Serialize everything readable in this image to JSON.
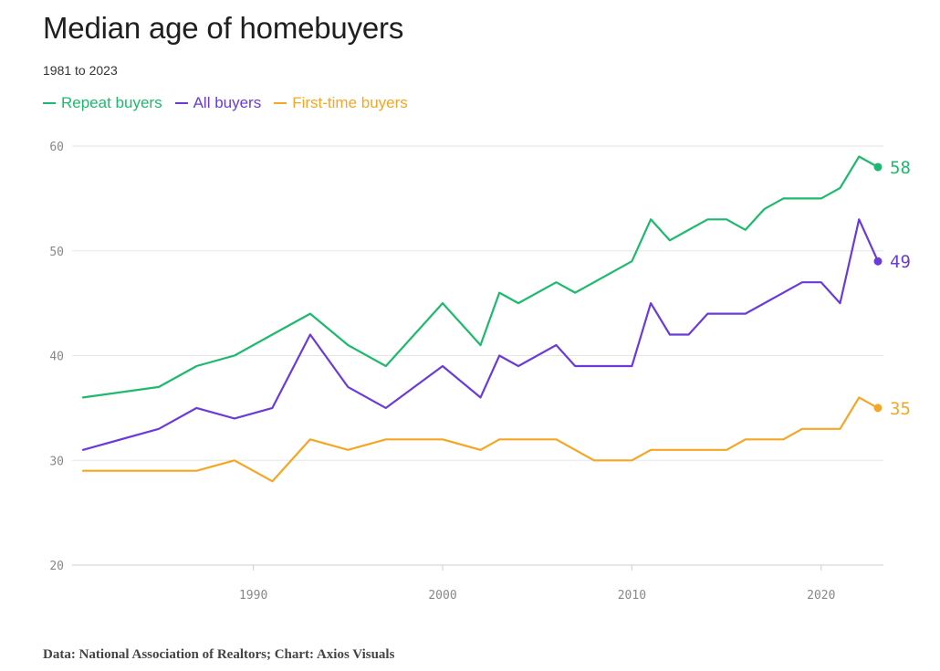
{
  "header": {
    "title": "Median age of homebuyers",
    "subtitle": "1981 to 2023"
  },
  "legend": [
    {
      "label": "Repeat buyers",
      "color": "#1db96e"
    },
    {
      "label": "All buyers",
      "color": "#6a3bd8"
    },
    {
      "label": "First-time buyers",
      "color": "#f5a623"
    }
  ],
  "source": "Data: National Association of Realtors; Chart: Axios Visuals",
  "chart_data": {
    "type": "line",
    "title": "Median age of homebuyers",
    "subtitle": "1981 to 2023",
    "xlim": [
      1981,
      2023
    ],
    "ylim": [
      20,
      60
    ],
    "x_ticks": [
      1990,
      2000,
      2010,
      2020
    ],
    "y_ticks": [
      20,
      30,
      40,
      50,
      60
    ],
    "grid": "horizontal",
    "legend_position": "top-left",
    "series": [
      {
        "name": "Repeat buyers",
        "color": "#1db96e",
        "end_label": "58",
        "points": [
          [
            1981,
            36
          ],
          [
            1985,
            37
          ],
          [
            1987,
            39
          ],
          [
            1989,
            40
          ],
          [
            1991,
            42
          ],
          [
            1993,
            44
          ],
          [
            1995,
            41
          ],
          [
            1997,
            39
          ],
          [
            2000,
            45
          ],
          [
            2002,
            41
          ],
          [
            2003,
            46
          ],
          [
            2004,
            45
          ],
          [
            2006,
            47
          ],
          [
            2007,
            46
          ],
          [
            2010,
            49
          ],
          [
            2011,
            53
          ],
          [
            2012,
            51
          ],
          [
            2014,
            53
          ],
          [
            2015,
            53
          ],
          [
            2016,
            52
          ],
          [
            2017,
            54
          ],
          [
            2018,
            55
          ],
          [
            2019,
            55
          ],
          [
            2020,
            55
          ],
          [
            2021,
            56
          ],
          [
            2022,
            59
          ],
          [
            2023,
            58
          ]
        ]
      },
      {
        "name": "All buyers",
        "color": "#6a3bd8",
        "end_label": "49",
        "points": [
          [
            1981,
            31
          ],
          [
            1985,
            33
          ],
          [
            1987,
            35
          ],
          [
            1989,
            34
          ],
          [
            1991,
            35
          ],
          [
            1993,
            42
          ],
          [
            1995,
            37
          ],
          [
            1997,
            35
          ],
          [
            2000,
            39
          ],
          [
            2002,
            36
          ],
          [
            2003,
            40
          ],
          [
            2004,
            39
          ],
          [
            2006,
            41
          ],
          [
            2007,
            39
          ],
          [
            2010,
            39
          ],
          [
            2011,
            45
          ],
          [
            2012,
            42
          ],
          [
            2013,
            42
          ],
          [
            2014,
            44
          ],
          [
            2016,
            44
          ],
          [
            2019,
            47
          ],
          [
            2020,
            47
          ],
          [
            2021,
            45
          ],
          [
            2022,
            53
          ],
          [
            2023,
            49
          ]
        ]
      },
      {
        "name": "First-time buyers",
        "color": "#f5a623",
        "end_label": "35",
        "points": [
          [
            1981,
            29
          ],
          [
            1985,
            29
          ],
          [
            1987,
            29
          ],
          [
            1989,
            30
          ],
          [
            1991,
            28
          ],
          [
            1993,
            32
          ],
          [
            1995,
            31
          ],
          [
            1997,
            32
          ],
          [
            2000,
            32
          ],
          [
            2002,
            31
          ],
          [
            2003,
            32
          ],
          [
            2006,
            32
          ],
          [
            2008,
            30
          ],
          [
            2010,
            30
          ],
          [
            2011,
            31
          ],
          [
            2015,
            31
          ],
          [
            2016,
            32
          ],
          [
            2018,
            32
          ],
          [
            2019,
            33
          ],
          [
            2021,
            33
          ],
          [
            2022,
            36
          ],
          [
            2023,
            35
          ]
        ]
      }
    ]
  }
}
